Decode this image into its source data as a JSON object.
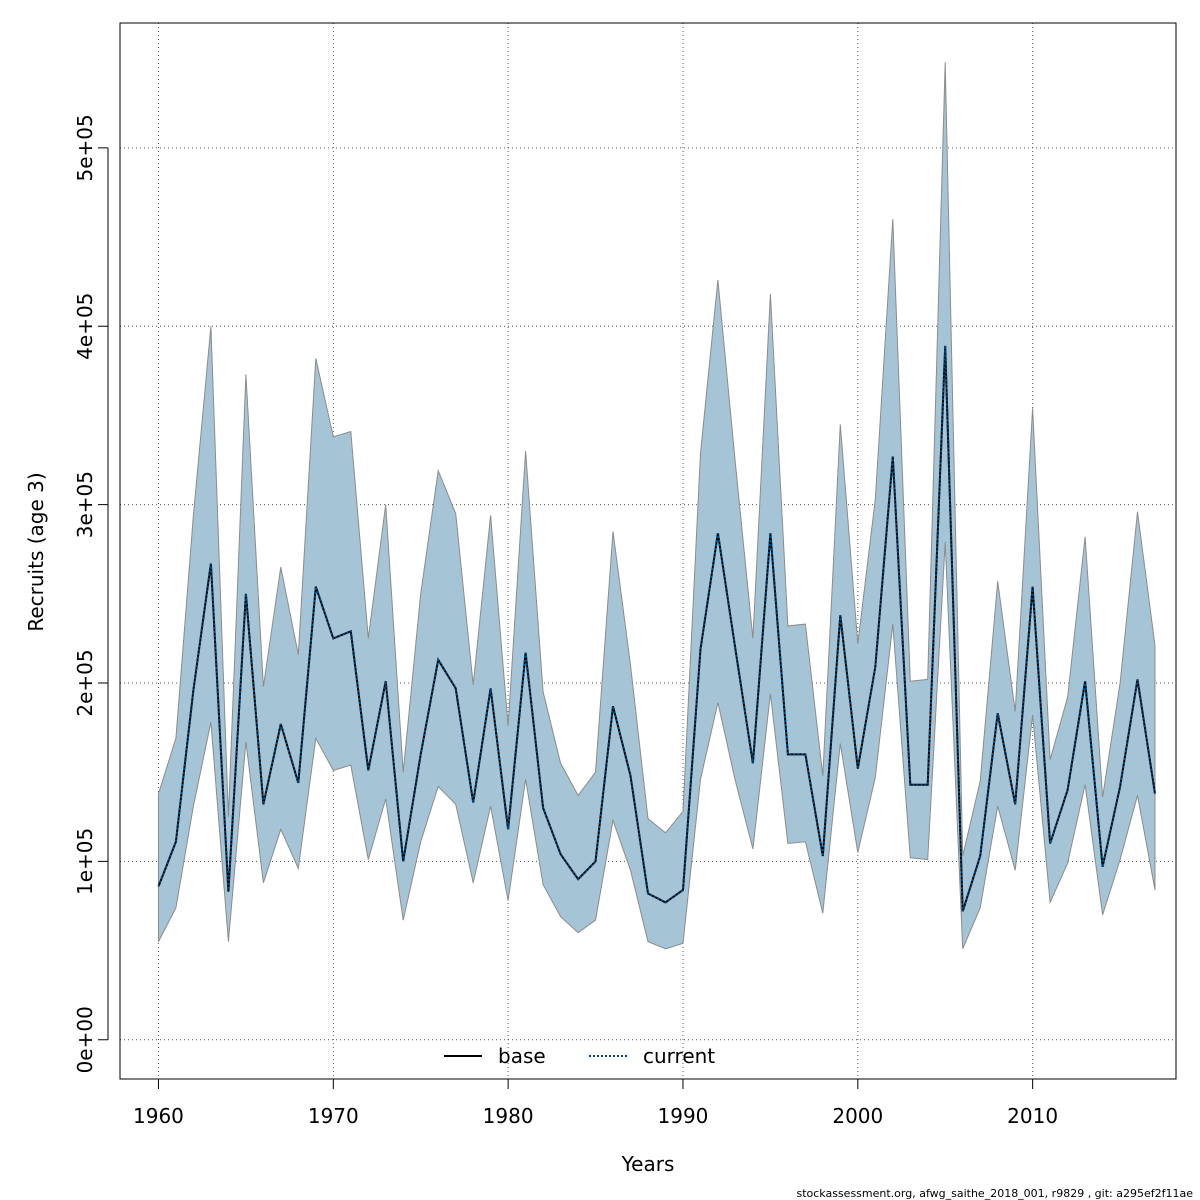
{
  "chart_data": {
    "type": "line",
    "xlabel": "Years",
    "ylabel": "Recruits (age 3)",
    "xlim": [
      1957.8,
      2018.2
    ],
    "ylim": [
      -22000,
      570000
    ],
    "x_ticks": [
      1960,
      1970,
      1980,
      1990,
      2000,
      2010
    ],
    "x_tick_labels": [
      "1960",
      "1970",
      "1980",
      "1990",
      "2000",
      "2010"
    ],
    "y_ticks": [
      0,
      100000,
      200000,
      300000,
      400000,
      500000
    ],
    "y_tick_labels": [
      "0e+00",
      "1e+05",
      "2e+05",
      "3e+05",
      "4e+05",
      "5e+05"
    ],
    "grid": true,
    "legend_position": "bottom-center",
    "x": [
      1960,
      1961,
      1962,
      1963,
      1964,
      1965,
      1966,
      1967,
      1968,
      1969,
      1970,
      1971,
      1972,
      1973,
      1974,
      1975,
      1976,
      1977,
      1978,
      1979,
      1980,
      1981,
      1982,
      1983,
      1984,
      1985,
      1986,
      1987,
      1988,
      1989,
      1990,
      1991,
      1992,
      1993,
      1994,
      1995,
      1996,
      1997,
      1998,
      1999,
      2000,
      2001,
      2002,
      2003,
      2004,
      2005,
      2006,
      2007,
      2008,
      2009,
      2010,
      2011,
      2012,
      2013,
      2014,
      2015,
      2016,
      2017
    ],
    "series": [
      {
        "name": "base",
        "line_style": "solid",
        "color": "#000000",
        "values": [
          86000,
          111000,
          196000,
          267000,
          83000,
          250000,
          132000,
          177000,
          144000,
          254000,
          225000,
          229000,
          151000,
          201000,
          100000,
          160000,
          213000,
          197000,
          133000,
          197000,
          118000,
          217000,
          130000,
          104000,
          90000,
          100000,
          187000,
          148000,
          82000,
          77000,
          84000,
          219000,
          284000,
          219000,
          155000,
          284000,
          160000,
          160000,
          103000,
          238000,
          152000,
          209000,
          327000,
          143000,
          143000,
          389000,
          72000,
          103000,
          183000,
          132000,
          254000,
          110000,
          140000,
          201000,
          97000,
          142000,
          202000,
          138000
        ]
      },
      {
        "name": "current",
        "line_style": "dotted",
        "color": "#004c80",
        "values": [
          86000,
          111000,
          196000,
          267000,
          83000,
          250000,
          132000,
          177000,
          144000,
          254000,
          225000,
          229000,
          151000,
          201000,
          100000,
          160000,
          213000,
          197000,
          133000,
          197000,
          118000,
          217000,
          130000,
          104000,
          90000,
          100000,
          187000,
          148000,
          82000,
          77000,
          84000,
          219000,
          284000,
          219000,
          155000,
          284000,
          160000,
          160000,
          103000,
          238000,
          152000,
          209000,
          327000,
          143000,
          143000,
          389000,
          72000,
          103000,
          183000,
          132000,
          254000,
          110000,
          140000,
          201000,
          97000,
          142000,
          202000,
          138000
        ]
      }
    ],
    "confidence_band": {
      "color": "#a5c4d5",
      "stroke": "#8c8c8c",
      "lower": [
        55000,
        74000,
        131000,
        178000,
        55000,
        167000,
        88000,
        118000,
        96000,
        169000,
        151000,
        154000,
        101000,
        135000,
        67000,
        111000,
        142000,
        132000,
        88000,
        131000,
        78000,
        146000,
        87000,
        69000,
        60000,
        67000,
        123000,
        95000,
        55000,
        51000,
        54000,
        146000,
        189000,
        145000,
        107000,
        194000,
        110000,
        111000,
        71000,
        166000,
        105000,
        147000,
        233000,
        102000,
        101000,
        279000,
        51000,
        74000,
        131000,
        95000,
        182000,
        77000,
        99000,
        143000,
        70000,
        101000,
        137000,
        84000
      ],
      "upper": [
        138000,
        169000,
        294000,
        400000,
        125000,
        373000,
        198000,
        265000,
        216000,
        382000,
        338000,
        341000,
        225000,
        300000,
        150000,
        250000,
        319000,
        295000,
        199000,
        294000,
        176000,
        330000,
        195000,
        155000,
        137000,
        150000,
        285000,
        210000,
        124000,
        116000,
        128000,
        329000,
        426000,
        323000,
        225000,
        418000,
        232000,
        233000,
        148000,
        345000,
        222000,
        303000,
        460000,
        201000,
        202000,
        548000,
        103000,
        145000,
        257000,
        184000,
        354000,
        157000,
        192000,
        282000,
        136000,
        200000,
        296000,
        221000
      ]
    }
  },
  "legend": {
    "items": [
      {
        "label": "base",
        "style": "solid",
        "color": "#000000"
      },
      {
        "label": "current",
        "style": "dotted",
        "color": "#004c80"
      }
    ]
  },
  "footer": {
    "text": "stockassessment.org, afwg_saithe_2018_001, r9829 , git: a295ef2f11ae"
  }
}
